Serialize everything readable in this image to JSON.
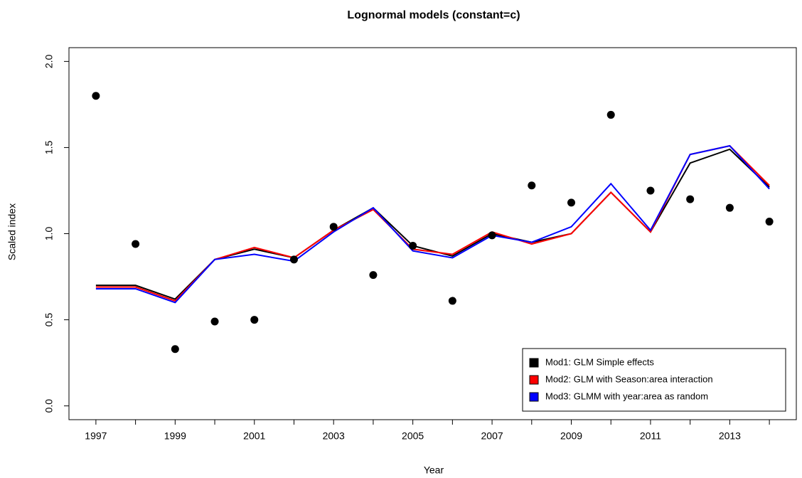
{
  "chart_data": {
    "type": "line",
    "title": "Lognormal models (constant=c)",
    "x_label": "Year",
    "y_label": "Scaled index",
    "x": [
      1997,
      1998,
      1999,
      2000,
      2001,
      2002,
      2003,
      2004,
      2005,
      2006,
      2007,
      2008,
      2009,
      2010,
      2011,
      2012,
      2013,
      2014
    ],
    "points": {
      "color": "#000000",
      "values": [
        1.8,
        0.94,
        0.33,
        0.49,
        0.5,
        0.85,
        1.04,
        0.76,
        0.93,
        0.61,
        0.99,
        1.28,
        1.18,
        1.69,
        1.25,
        1.2,
        1.15,
        1.07
      ]
    },
    "series": [
      {
        "name": "Mod1: GLM Simple effects",
        "color": "#000000",
        "values": [
          0.7,
          0.7,
          0.62,
          0.85,
          0.91,
          0.86,
          1.02,
          1.15,
          0.93,
          0.87,
          1.0,
          0.95,
          1.0,
          1.24,
          1.01,
          1.41,
          1.49,
          1.27
        ]
      },
      {
        "name": "Mod2: GLM with Season:area interaction",
        "color": "#ff0000",
        "values": [
          0.69,
          0.69,
          0.61,
          0.85,
          0.92,
          0.86,
          1.02,
          1.14,
          0.91,
          0.88,
          1.01,
          0.94,
          1.0,
          1.24,
          1.01,
          1.46,
          1.51,
          1.28
        ]
      },
      {
        "name": "Mod3: GLMM with year:area as random",
        "color": "#0000ff",
        "values": [
          0.68,
          0.68,
          0.6,
          0.85,
          0.88,
          0.84,
          1.01,
          1.15,
          0.9,
          0.86,
          0.99,
          0.95,
          1.04,
          1.29,
          1.02,
          1.46,
          1.51,
          1.26
        ]
      }
    ],
    "xlim": [
      1996.32,
      2014.68
    ],
    "xticks": [
      1997,
      1999,
      2001,
      2003,
      2005,
      2007,
      2009,
      2011,
      2013
    ],
    "ylim": [
      -0.08,
      2.08
    ],
    "yticks": [
      {
        "value": 0,
        "label": "0.0"
      },
      {
        "value": 0.5,
        "label": "0.5"
      },
      {
        "value": 1,
        "label": "1.0"
      },
      {
        "value": 1.5,
        "label": "1.5"
      },
      {
        "value": 2,
        "label": "2.0"
      }
    ],
    "legend": "bottom-right"
  }
}
